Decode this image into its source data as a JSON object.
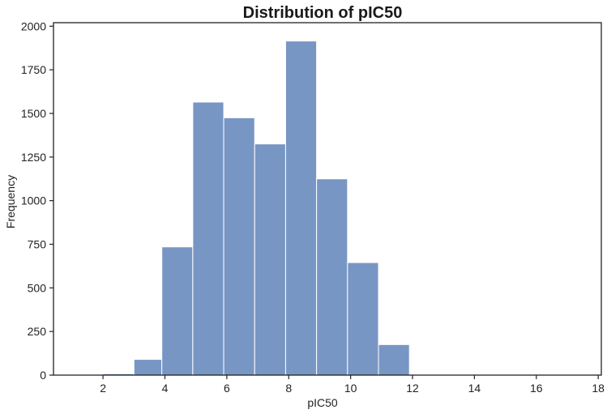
{
  "chart_data": {
    "type": "bar",
    "title": "Distribution of pIC50",
    "xlabel": "pIC50",
    "ylabel": "Frequency",
    "xlim": [
      0.4,
      18.1
    ],
    "ylim": [
      0,
      2020
    ],
    "bar_color": "#7896C4",
    "bar_edge_color": "#ffffff",
    "x_ticks": [
      2,
      4,
      6,
      8,
      10,
      12,
      14,
      16,
      18
    ],
    "x_tick_labels": [
      "2",
      "4",
      "6",
      "8",
      "10",
      "12",
      "14",
      "16",
      "18"
    ],
    "y_ticks": [
      0,
      250,
      500,
      750,
      1000,
      1250,
      1500,
      1750,
      2000
    ],
    "y_tick_labels": [
      "0",
      "250",
      "500",
      "750",
      "1000",
      "1250",
      "1500",
      "1750",
      "2000"
    ],
    "bins": [
      {
        "x0": 2.0,
        "x1": 3.0,
        "count": 8
      },
      {
        "x0": 3.0,
        "x1": 3.9,
        "count": 90
      },
      {
        "x0": 3.9,
        "x1": 4.9,
        "count": 735
      },
      {
        "x0": 4.9,
        "x1": 5.9,
        "count": 1565
      },
      {
        "x0": 5.9,
        "x1": 6.9,
        "count": 1475
      },
      {
        "x0": 6.9,
        "x1": 7.9,
        "count": 1325
      },
      {
        "x0": 7.9,
        "x1": 8.9,
        "count": 1915
      },
      {
        "x0": 8.9,
        "x1": 9.9,
        "count": 1125
      },
      {
        "x0": 9.9,
        "x1": 10.9,
        "count": 645
      },
      {
        "x0": 10.9,
        "x1": 11.9,
        "count": 175
      }
    ],
    "legend": "none",
    "grid": false
  }
}
